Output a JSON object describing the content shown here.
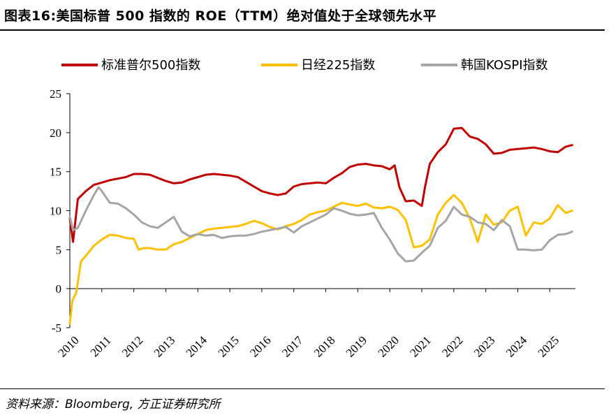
{
  "header": {
    "title": "图表16:美国标普 500 指数的 ROE（TTM）绝对值处于全球领先水平"
  },
  "footer": {
    "source": "资料来源：Bloomberg, 方正证券研究所"
  },
  "chart_data": {
    "type": "line",
    "title": "图表16:美国标普 500 指数的 ROE（TTM）绝对值处于全球领先水平",
    "xlabel": "",
    "ylabel": "",
    "xlim": [
      2010,
      2025.8
    ],
    "ylim": [
      -5,
      25
    ],
    "yticks": [
      -5,
      0,
      5,
      10,
      15,
      20,
      25
    ],
    "xticks": [
      "2010",
      "2011",
      "2012",
      "2013",
      "2014",
      "2015",
      "2016",
      "2017",
      "2018",
      "2019",
      "2020",
      "2021",
      "2022",
      "2023",
      "2024",
      "2025"
    ],
    "grid": false,
    "legend_position": "top",
    "series": [
      {
        "name": "标准普尔500指数",
        "color": "#C00000",
        "x": [
          2010.0,
          2010.1,
          2010.25,
          2010.5,
          2010.75,
          2011.0,
          2011.25,
          2011.5,
          2011.75,
          2012.0,
          2012.25,
          2012.5,
          2012.75,
          2013.0,
          2013.25,
          2013.5,
          2013.75,
          2014.0,
          2014.25,
          2014.5,
          2014.75,
          2015.0,
          2015.25,
          2015.5,
          2015.75,
          2016.0,
          2016.25,
          2016.5,
          2016.75,
          2017.0,
          2017.25,
          2017.5,
          2017.75,
          2018.0,
          2018.25,
          2018.5,
          2018.75,
          2019.0,
          2019.25,
          2019.5,
          2019.75,
          2020.0,
          2020.15,
          2020.3,
          2020.5,
          2020.75,
          2021.0,
          2021.1,
          2021.25,
          2021.5,
          2021.75,
          2022.0,
          2022.25,
          2022.5,
          2022.75,
          2023.0,
          2023.25,
          2023.5,
          2023.75,
          2024.0,
          2024.25,
          2024.5,
          2024.75,
          2025.0,
          2025.25,
          2025.5,
          2025.7
        ],
        "y": [
          9.0,
          6.0,
          11.5,
          12.5,
          13.3,
          13.6,
          13.9,
          14.1,
          14.3,
          14.7,
          14.7,
          14.6,
          14.2,
          13.8,
          13.5,
          13.6,
          14.0,
          14.3,
          14.6,
          14.7,
          14.6,
          14.5,
          14.3,
          13.7,
          13.1,
          12.5,
          12.2,
          12.0,
          12.2,
          13.1,
          13.4,
          13.5,
          13.6,
          13.5,
          14.2,
          14.8,
          15.6,
          15.9,
          16.0,
          15.8,
          15.7,
          15.3,
          15.8,
          13.0,
          11.2,
          11.3,
          10.6,
          13.0,
          16.0,
          17.5,
          18.5,
          20.5,
          20.6,
          19.5,
          19.2,
          18.5,
          17.3,
          17.4,
          17.8,
          17.9,
          18.0,
          18.1,
          17.9,
          17.6,
          17.5,
          18.2,
          18.4
        ]
      },
      {
        "name": "日经225指数",
        "color": "#FFC000",
        "x": [
          2010.0,
          2010.08,
          2010.2,
          2010.35,
          2010.5,
          2010.75,
          2011.0,
          2011.25,
          2011.5,
          2011.75,
          2012.0,
          2012.15,
          2012.3,
          2012.5,
          2012.75,
          2013.0,
          2013.25,
          2013.5,
          2013.75,
          2014.0,
          2014.25,
          2014.5,
          2014.75,
          2015.0,
          2015.25,
          2015.5,
          2015.75,
          2016.0,
          2016.25,
          2016.5,
          2016.75,
          2017.0,
          2017.25,
          2017.5,
          2017.75,
          2018.0,
          2018.25,
          2018.5,
          2018.75,
          2019.0,
          2019.25,
          2019.5,
          2019.75,
          2020.0,
          2020.25,
          2020.5,
          2020.75,
          2021.0,
          2021.25,
          2021.5,
          2021.75,
          2022.0,
          2022.25,
          2022.5,
          2022.75,
          2023.0,
          2023.25,
          2023.5,
          2023.75,
          2024.0,
          2024.25,
          2024.5,
          2024.75,
          2025.0,
          2025.25,
          2025.5,
          2025.7
        ],
        "y": [
          -4.5,
          -1.5,
          -0.5,
          3.5,
          4.2,
          5.5,
          6.3,
          6.9,
          6.8,
          6.5,
          6.4,
          5.0,
          5.2,
          5.2,
          5.0,
          5.0,
          5.7,
          6.0,
          6.5,
          7.0,
          7.5,
          7.7,
          7.8,
          7.9,
          8.0,
          8.3,
          8.7,
          8.4,
          7.9,
          7.6,
          8.0,
          8.3,
          8.8,
          9.5,
          9.8,
          10.0,
          10.5,
          11.0,
          10.8,
          10.6,
          10.9,
          10.4,
          10.3,
          10.5,
          10.1,
          8.8,
          5.3,
          5.5,
          6.3,
          9.5,
          11.0,
          12.0,
          11.0,
          9.0,
          6.0,
          9.5,
          8.2,
          8.5,
          10.0,
          10.5,
          6.8,
          8.5,
          8.3,
          9.0,
          10.7,
          9.7,
          10.0
        ]
      },
      {
        "name": "韩国KOSPI指数",
        "color": "#A5A5A5",
        "x": [
          2010.0,
          2010.1,
          2010.25,
          2010.5,
          2010.75,
          2010.9,
          2011.0,
          2011.25,
          2011.5,
          2011.75,
          2012.0,
          2012.25,
          2012.5,
          2012.75,
          2013.0,
          2013.25,
          2013.5,
          2013.75,
          2014.0,
          2014.25,
          2014.5,
          2014.75,
          2015.0,
          2015.25,
          2015.5,
          2015.75,
          2016.0,
          2016.25,
          2016.5,
          2016.75,
          2017.0,
          2017.25,
          2017.5,
          2017.75,
          2018.0,
          2018.25,
          2018.5,
          2018.75,
          2019.0,
          2019.25,
          2019.5,
          2019.75,
          2020.0,
          2020.25,
          2020.5,
          2020.75,
          2021.0,
          2021.25,
          2021.5,
          2021.75,
          2022.0,
          2022.25,
          2022.5,
          2022.75,
          2023.0,
          2023.25,
          2023.5,
          2023.75,
          2024.0,
          2024.25,
          2024.5,
          2024.75,
          2025.0,
          2025.25,
          2025.5,
          2025.7
        ],
        "y": [
          9.2,
          7.5,
          7.8,
          10.0,
          12.0,
          13.0,
          12.5,
          11.0,
          10.9,
          10.3,
          9.5,
          8.5,
          8.0,
          7.8,
          8.5,
          9.2,
          7.3,
          6.7,
          7.0,
          6.8,
          6.9,
          6.5,
          6.7,
          6.8,
          6.8,
          7.0,
          7.3,
          7.5,
          7.7,
          7.9,
          7.2,
          8.0,
          8.5,
          9.0,
          9.5,
          10.3,
          10.0,
          9.6,
          9.4,
          9.5,
          9.7,
          7.8,
          6.3,
          4.5,
          3.5,
          3.6,
          4.6,
          5.5,
          7.8,
          8.7,
          10.5,
          9.5,
          9.2,
          8.5,
          8.3,
          7.5,
          8.8,
          8.0,
          5.0,
          5.0,
          4.9,
          5.0,
          6.2,
          6.9,
          7.0,
          7.3
        ]
      }
    ]
  }
}
